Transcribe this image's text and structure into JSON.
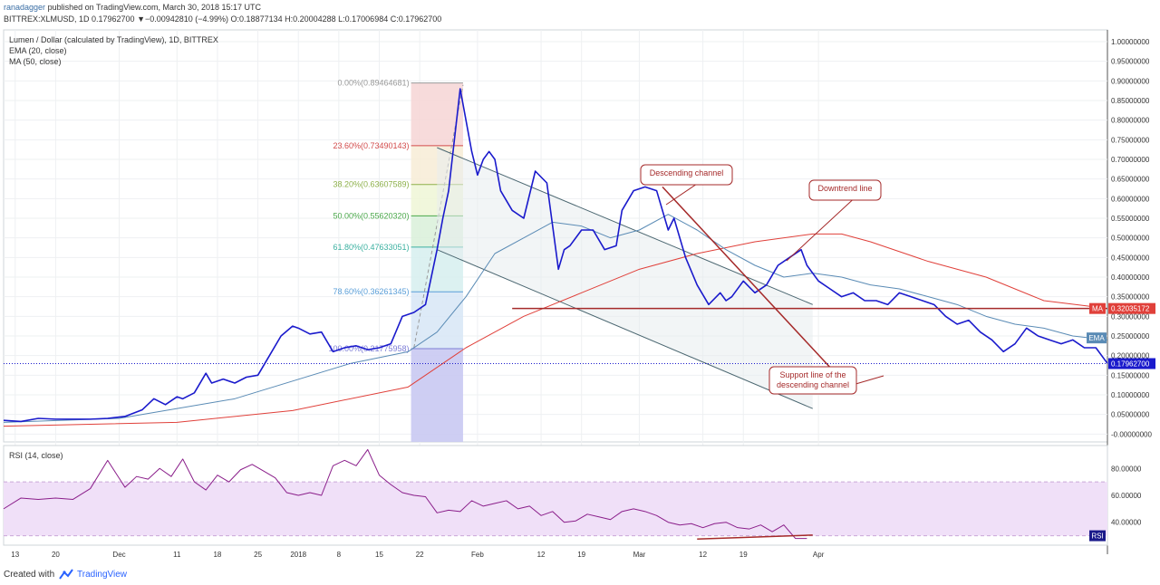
{
  "header": {
    "author": "ranadagger",
    "published_text": "published on TradingView.com, March 30, 2018 15:17 UTC",
    "ohlc_line": "BITTREX:XLMUSD, 1D 0.17962700 ▼−0.00942810 (−4.99%) O:0.18877134 H:0.20004288 L:0.17006984 C:0.17962700"
  },
  "footer": {
    "created_with": "Created with",
    "brand": "TradingView",
    "logo_icon": "tradingview-cloud-icon"
  },
  "colors": {
    "price": "#1a1acc",
    "ema": "#5a8bb5",
    "ma": "#e0403a",
    "channel": "#4a6670",
    "annotation": "#a52a2a",
    "rsi": "#8a1e8a",
    "rsi_band": "#f0e0f8"
  },
  "chart_data": [
    {
      "type": "line",
      "title": "Lumen / Dollar (calculated by TradingView), 1D, BITTREX",
      "series": [
        {
          "name": "Price",
          "x": [
            0,
            3,
            6,
            9,
            12,
            15,
            18,
            21,
            24,
            26,
            28,
            30,
            31,
            33,
            35,
            36,
            38,
            40,
            42,
            44,
            46,
            48,
            50,
            51,
            53,
            55,
            57,
            59,
            61,
            63,
            65,
            67,
            69,
            71,
            73,
            75,
            76,
            77,
            79,
            81,
            82,
            83,
            84,
            85,
            86,
            88,
            90,
            92,
            94,
            96,
            97,
            98,
            100,
            102,
            104,
            106,
            107,
            109,
            111,
            113,
            115,
            116,
            118,
            120,
            122,
            124,
            125,
            126,
            128,
            130,
            132,
            134,
            136,
            138,
            139,
            141,
            143,
            145,
            147,
            149,
            151,
            153,
            155,
            157,
            159,
            161,
            163,
            165,
            167,
            169,
            171,
            173,
            175,
            177,
            179,
            181,
            183,
            185,
            187,
            189,
            191
          ],
          "values": [
            0.035,
            0.032,
            0.04,
            0.038,
            0.038,
            0.038,
            0.04,
            0.045,
            0.062,
            0.09,
            0.075,
            0.095,
            0.09,
            0.105,
            0.155,
            0.13,
            0.14,
            0.13,
            0.145,
            0.15,
            0.2,
            0.25,
            0.275,
            0.27,
            0.255,
            0.26,
            0.21,
            0.22,
            0.225,
            0.215,
            0.22,
            0.23,
            0.3,
            0.31,
            0.33,
            0.47,
            0.55,
            0.62,
            0.88,
            0.72,
            0.66,
            0.7,
            0.72,
            0.7,
            0.62,
            0.57,
            0.55,
            0.67,
            0.64,
            0.42,
            0.47,
            0.48,
            0.52,
            0.52,
            0.47,
            0.48,
            0.57,
            0.62,
            0.63,
            0.62,
            0.52,
            0.55,
            0.45,
            0.38,
            0.33,
            0.36,
            0.34,
            0.35,
            0.39,
            0.36,
            0.38,
            0.43,
            0.45,
            0.47,
            0.43,
            0.39,
            0.37,
            0.35,
            0.36,
            0.34,
            0.34,
            0.33,
            0.36,
            0.35,
            0.34,
            0.33,
            0.3,
            0.28,
            0.29,
            0.26,
            0.24,
            0.21,
            0.23,
            0.27,
            0.25,
            0.24,
            0.23,
            0.24,
            0.22,
            0.22,
            0.18
          ]
        },
        {
          "name": "EMA (20, close)",
          "x": [
            0,
            20,
            40,
            60,
            70,
            75,
            80,
            85,
            90,
            95,
            100,
            105,
            110,
            115,
            120,
            125,
            130,
            135,
            140,
            145,
            150,
            155,
            160,
            165,
            170,
            175,
            180,
            185,
            191
          ],
          "values": [
            0.03,
            0.04,
            0.09,
            0.18,
            0.21,
            0.26,
            0.35,
            0.46,
            0.5,
            0.54,
            0.53,
            0.5,
            0.52,
            0.56,
            0.52,
            0.47,
            0.43,
            0.4,
            0.41,
            0.4,
            0.38,
            0.37,
            0.35,
            0.33,
            0.3,
            0.28,
            0.27,
            0.25,
            0.24
          ]
        },
        {
          "name": "MA (50, close)",
          "x": [
            0,
            30,
            50,
            70,
            80,
            90,
            100,
            110,
            120,
            130,
            140,
            145,
            150,
            160,
            170,
            180,
            191
          ],
          "values": [
            0.02,
            0.03,
            0.06,
            0.12,
            0.22,
            0.3,
            0.36,
            0.42,
            0.46,
            0.49,
            0.51,
            0.51,
            0.49,
            0.44,
            0.4,
            0.34,
            0.32
          ]
        }
      ],
      "legend": [
        "EMA (20, close)",
        "MA (50, close)"
      ],
      "x_ticks": [
        {
          "x": 2,
          "label": "13"
        },
        {
          "x": 9,
          "label": "20"
        },
        {
          "x": 20,
          "label": "Dec"
        },
        {
          "x": 30,
          "label": "11"
        },
        {
          "x": 37,
          "label": "18"
        },
        {
          "x": 44,
          "label": "25"
        },
        {
          "x": 51,
          "label": "2018"
        },
        {
          "x": 58,
          "label": "8"
        },
        {
          "x": 65,
          "label": "15"
        },
        {
          "x": 72,
          "label": "22"
        },
        {
          "x": 82,
          "label": "Feb"
        },
        {
          "x": 93,
          "label": "12"
        },
        {
          "x": 100,
          "label": "19"
        },
        {
          "x": 110,
          "label": "Mar"
        },
        {
          "x": 121,
          "label": "12"
        },
        {
          "x": 128,
          "label": "19"
        },
        {
          "x": 141,
          "label": "Apr"
        }
      ],
      "y_ticks": [
        "1.00000000",
        "0.95000000",
        "0.90000000",
        "0.85000000",
        "0.80000000",
        "0.75000000",
        "0.70000000",
        "0.65000000",
        "0.60000000",
        "0.55000000",
        "0.50000000",
        "0.45000000",
        "0.40000000",
        "0.35000000",
        "0.30000000",
        "0.25000000",
        "0.20000000",
        "0.15000000",
        "0.10000000",
        "0.05000000",
        "-0.00000000"
      ],
      "ylim": [
        -0.02,
        1.03
      ],
      "last_price_label": "0.17962700",
      "ma_badge": "MA",
      "ma_value_label": "0.32035172",
      "ema_badge": "EMA",
      "fibonacci": [
        {
          "label": "0.00%(0.89464681)",
          "value": 0.8946
        },
        {
          "label": "23.60%(0.73490143)",
          "value": 0.7349
        },
        {
          "label": "38.20%(0.63607589)",
          "value": 0.6361
        },
        {
          "label": "50.00%(0.55620320)",
          "value": 0.5562
        },
        {
          "label": "61.80%(0.47633051)",
          "value": 0.4763
        },
        {
          "label": "78.60%(0.36261345)",
          "value": 0.3626
        },
        {
          "label": "100.00%(0.21775958)",
          "value": 0.2178
        }
      ],
      "descending_channel": {
        "upper": [
          [
            75,
            0.73
          ],
          [
            140,
            0.33
          ]
        ],
        "lower": [
          [
            75,
            0.47
          ],
          [
            140,
            0.065
          ]
        ]
      },
      "downtrend_line": [
        [
          114,
          0.63
        ],
        [
          143,
          0.17
        ]
      ],
      "support_level": 0.32,
      "annotations": [
        {
          "text": "Descending channel"
        },
        {
          "text": "Downtrend line"
        },
        {
          "text": "Support line of the descending channel"
        }
      ]
    },
    {
      "type": "line",
      "title": "RSI (14, close)",
      "series": [
        {
          "name": "RSI",
          "x": [
            0,
            3,
            6,
            9,
            12,
            15,
            18,
            21,
            23,
            25,
            27,
            29,
            31,
            33,
            35,
            37,
            39,
            41,
            43,
            45,
            47,
            49,
            51,
            53,
            55,
            57,
            59,
            61,
            63,
            65,
            67,
            69,
            71,
            73,
            75,
            77,
            79,
            81,
            83,
            85,
            87,
            89,
            91,
            93,
            95,
            97,
            99,
            101,
            103,
            105,
            107,
            109,
            111,
            113,
            115,
            117,
            119,
            121,
            123,
            125,
            127,
            129,
            131,
            133,
            135,
            137,
            139
          ],
          "values": [
            50,
            58,
            57,
            58,
            57,
            65,
            86,
            66,
            74,
            72,
            80,
            74,
            87,
            70,
            64,
            75,
            70,
            79,
            83,
            78,
            73,
            62,
            60,
            62,
            60,
            82,
            86,
            82,
            94,
            75,
            68,
            62,
            60,
            59,
            47,
            49,
            48,
            56,
            52,
            54,
            56,
            50,
            52,
            45,
            48,
            40,
            41,
            46,
            44,
            42,
            48,
            50,
            48,
            45,
            40,
            38,
            39,
            36,
            39,
            40,
            36,
            35,
            38,
            33,
            38,
            28,
            28
          ]
        }
      ],
      "y_ticks": [
        "80.00000",
        "60.00000",
        "40.00000"
      ],
      "ylim": [
        23,
        97
      ],
      "band": [
        30,
        70
      ],
      "badge": "RSI",
      "support_line": [
        [
          120,
          27.5
        ],
        [
          140,
          30.5
        ]
      ]
    }
  ]
}
